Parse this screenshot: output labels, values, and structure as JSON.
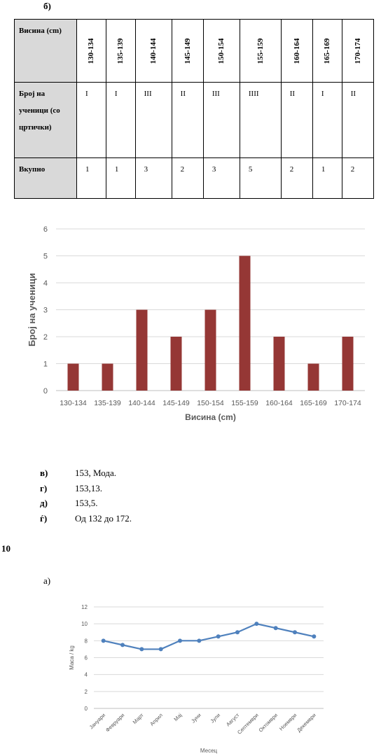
{
  "part_b_label": "б)",
  "table": {
    "header_label": "Висина (cm)",
    "tally_label": "Број на ученици (со цртички)",
    "total_label": "Вкупно",
    "columns": [
      "130-134",
      "135-139",
      "140-144",
      "145-149",
      "150-154",
      "155-159",
      "160-164",
      "165-169",
      "170-174"
    ],
    "tallies": [
      "I",
      "I",
      "III",
      "II",
      "III",
      "IIII",
      "II",
      "I",
      "II"
    ],
    "totals": [
      "1",
      "1",
      "3",
      "2",
      "3",
      "5",
      "2",
      "1",
      "2"
    ]
  },
  "chart_data": [
    {
      "type": "bar",
      "categories": [
        "130-134",
        "135-139",
        "140-144",
        "145-149",
        "150-154",
        "155-159",
        "160-164",
        "165-169",
        "170-174"
      ],
      "values": [
        1,
        1,
        3,
        2,
        3,
        5,
        2,
        1,
        2
      ],
      "title": "",
      "xlabel": "Висина (cm)",
      "ylabel": "Број на ученици",
      "ylim": [
        0,
        6
      ],
      "yticks": [
        0,
        1,
        2,
        3,
        4,
        5,
        6
      ],
      "grid": true,
      "bar_color": "#953735"
    },
    {
      "type": "line",
      "categories": [
        "Јануари",
        "Февруари",
        "Март",
        "Април",
        "Мај",
        "Јуни",
        "Јули",
        "Август",
        "Септември",
        "Октомври",
        "Ноември",
        "Декември"
      ],
      "values": [
        8,
        7.5,
        7,
        7,
        8,
        8,
        8.5,
        9,
        10,
        9.5,
        9,
        8.5
      ],
      "title": "",
      "xlabel": "Месец",
      "ylabel": "Маса / kg",
      "ylim": [
        0,
        12
      ],
      "yticks": [
        0,
        2,
        4,
        6,
        8,
        10,
        12
      ],
      "grid": true,
      "line_color": "#4f81bd"
    }
  ],
  "answers": [
    {
      "label": "в)",
      "text": "153, Мода."
    },
    {
      "label": "г)",
      "text": "153,13."
    },
    {
      "label": "д)",
      "text": "153,5."
    },
    {
      "label": "ѓ)",
      "text": "Од  132 до 172."
    }
  ],
  "problem_number": "10",
  "part_a_label": "а)"
}
